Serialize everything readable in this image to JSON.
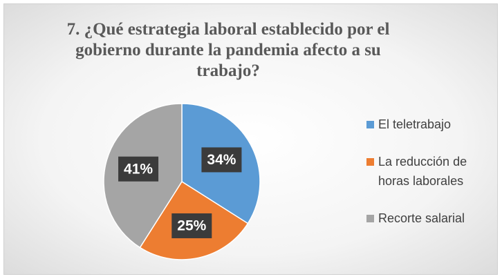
{
  "chart_data": {
    "type": "pie",
    "title": "7. ¿Qué estrategia laboral establecido por el gobierno durante la pandemia afecto a su trabajo?",
    "categories": [
      "El teletrabajo",
      "La reducción de horas laborales",
      "Recorte salarial"
    ],
    "values": [
      34,
      25,
      41
    ],
    "value_labels": [
      "34%",
      "25%",
      "41%"
    ],
    "colors": [
      "#5b9bd5",
      "#ed7d31",
      "#a5a5a5"
    ],
    "legend": "right"
  }
}
